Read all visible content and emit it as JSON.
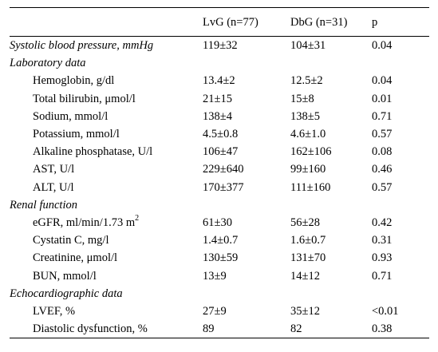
{
  "table": {
    "headers": [
      "",
      "LvG (n=77)",
      "DbG (n=31)",
      "p"
    ],
    "rows": [
      {
        "label": "Systolic blood pressure, mmHg",
        "style": "italic",
        "lvg": "119±32",
        "dbg": "104±31",
        "p": "0.04"
      },
      {
        "label": "Laboratory data",
        "style": "italic",
        "lvg": "",
        "dbg": "",
        "p": ""
      },
      {
        "label": "Hemoglobin, g/dl",
        "style": "indent",
        "lvg": "13.4±2",
        "dbg": "12.5±2",
        "p": "0.04"
      },
      {
        "label": "Total bilirubin, μmol/l",
        "style": "indent",
        "lvg": "21±15",
        "dbg": "15±8",
        "p": "0.01"
      },
      {
        "label": "Sodium, mmol/l",
        "style": "indent",
        "lvg": "138±4",
        "dbg": "138±5",
        "p": "0.71"
      },
      {
        "label": "Potassium, mmol/l",
        "style": "indent",
        "lvg": "4.5±0.8",
        "dbg": "4.6±1.0",
        "p": "0.57"
      },
      {
        "label": "Alkaline phosphatase, U/l",
        "style": "indent",
        "lvg": "106±47",
        "dbg": "162±106",
        "p": "0.08"
      },
      {
        "label": "AST, U/l",
        "style": "indent",
        "lvg": "229±640",
        "dbg": "99±160",
        "p": "0.46"
      },
      {
        "label": "ALT, U/l",
        "style": "indent",
        "lvg": "170±377",
        "dbg": "111±160",
        "p": "0.57"
      },
      {
        "label": "Renal function",
        "style": "italic",
        "lvg": "",
        "dbg": "",
        "p": ""
      },
      {
        "label": "eGFR, ml/min/1.73 m",
        "label_sup": "2",
        "style": "indent",
        "lvg": "61±30",
        "dbg": "56±28",
        "p": "0.42"
      },
      {
        "label": "Cystatin C, mg/l",
        "style": "indent",
        "lvg": "1.4±0.7",
        "dbg": "1.6±0.7",
        "p": "0.31"
      },
      {
        "label": "Creatinine, μmol/l",
        "style": "indent",
        "lvg": "130±59",
        "dbg": "131±70",
        "p": "0.93"
      },
      {
        "label": "BUN, mmol/l",
        "style": "indent",
        "lvg": "13±9",
        "dbg": "14±12",
        "p": "0.71"
      },
      {
        "label": "Echocardiographic data",
        "style": "italic",
        "lvg": "",
        "dbg": "",
        "p": ""
      },
      {
        "label": "LVEF, %",
        "style": "indent",
        "lvg": "27±9",
        "dbg": "35±12",
        "p": "<0.01"
      },
      {
        "label": "Diastolic dysfunction, %",
        "style": "indent",
        "lvg": "89",
        "dbg": "82",
        "p": "0.38"
      }
    ]
  }
}
